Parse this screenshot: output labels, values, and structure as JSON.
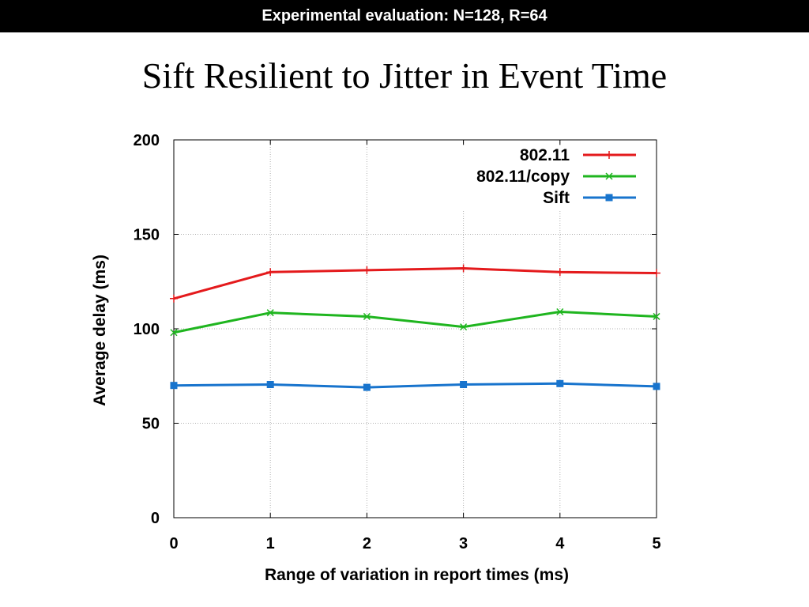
{
  "header": {
    "text": "Experimental evaluation: N=128, R=64"
  },
  "slide": {
    "title": "Sift Resilient to Jitter in Event Time"
  },
  "chart_data": {
    "type": "line",
    "x": [
      0,
      1,
      2,
      3,
      4,
      5
    ],
    "xlabel": "Range of variation in report times (ms)",
    "ylabel": "Average delay (ms)",
    "xlim": [
      0,
      5
    ],
    "ylim": [
      0,
      200
    ],
    "xticks": [
      0,
      1,
      2,
      3,
      4,
      5
    ],
    "yticks": [
      0,
      50,
      100,
      150,
      200
    ],
    "grid": true,
    "legend_position": "top-right",
    "series": [
      {
        "name": "802.11",
        "color": "#e41a1c",
        "marker": "plus",
        "values": [
          116,
          130,
          131,
          132,
          130,
          129.5
        ]
      },
      {
        "name": "802.11/copy",
        "color": "#1fb51f",
        "marker": "cross",
        "values": [
          98,
          108.5,
          106.5,
          101,
          109,
          106.5
        ]
      },
      {
        "name": "Sift",
        "color": "#1874cd",
        "marker": "square",
        "values": [
          70,
          70.5,
          69,
          70.5,
          71,
          69.5
        ]
      }
    ]
  }
}
